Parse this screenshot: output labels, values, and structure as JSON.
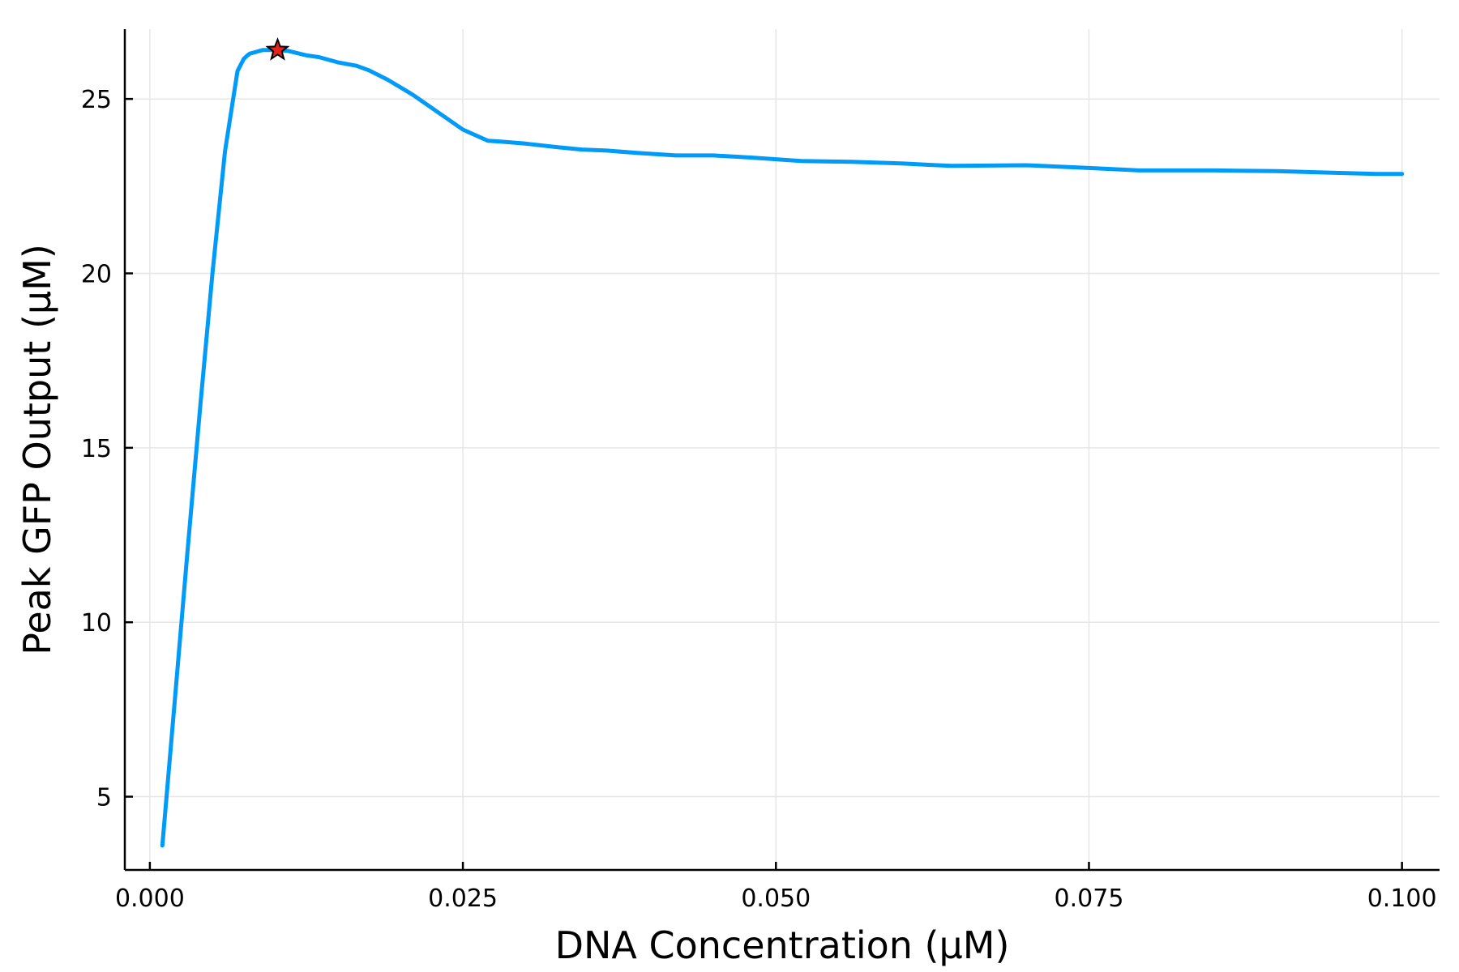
{
  "chart_data": {
    "type": "line",
    "title": "",
    "xlabel": "DNA Concentration (µM)",
    "ylabel": "Peak GFP Output (µM)",
    "xlim": [
      -0.002,
      0.103
    ],
    "ylim": [
      2.9,
      27.0
    ],
    "x_ticks": [
      0.0,
      0.025,
      0.05,
      0.075,
      0.1
    ],
    "x_tick_labels": [
      "0.000",
      "0.025",
      "0.050",
      "0.075",
      "0.100"
    ],
    "y_ticks": [
      5,
      10,
      15,
      20,
      25
    ],
    "y_tick_labels": [
      "5",
      "10",
      "15",
      "20",
      "25"
    ],
    "grid": true,
    "legend": "none",
    "series": [
      {
        "color": "#009af9",
        "x": [
          0.001,
          0.002,
          0.003,
          0.004,
          0.005,
          0.006,
          0.007,
          0.0075,
          0.0078,
          0.008,
          0.0085,
          0.009,
          0.0095,
          0.01,
          0.011,
          0.0125,
          0.0135,
          0.015,
          0.0165,
          0.0175,
          0.019,
          0.021,
          0.023,
          0.025,
          0.027,
          0.028,
          0.03,
          0.0325,
          0.0345,
          0.0365,
          0.039,
          0.042,
          0.045,
          0.048,
          0.052,
          0.056,
          0.06,
          0.064,
          0.07,
          0.075,
          0.079,
          0.085,
          0.09,
          0.095,
          0.098,
          0.1
        ],
        "y": [
          3.6,
          7.8,
          12.0,
          16.1,
          20.0,
          23.5,
          25.8,
          26.15,
          26.25,
          26.3,
          26.35,
          26.4,
          26.4,
          26.4,
          26.38,
          26.25,
          26.2,
          26.05,
          25.95,
          25.82,
          25.55,
          25.12,
          24.62,
          24.12,
          23.8,
          23.78,
          23.72,
          23.62,
          23.55,
          23.52,
          23.45,
          23.38,
          23.38,
          23.32,
          23.22,
          23.2,
          23.15,
          23.08,
          23.1,
          23.02,
          22.95,
          22.95,
          22.93,
          22.88,
          22.85,
          22.85
        ]
      }
    ],
    "annotations": [
      {
        "kind": "star-marker",
        "x": 0.0102,
        "y": 26.4,
        "color": "#e8211b"
      }
    ]
  }
}
